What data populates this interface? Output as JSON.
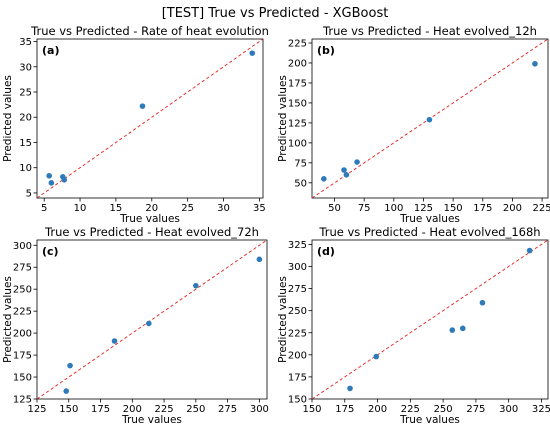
{
  "figure_title": "[TEST] True vs Predicted - XGBoost",
  "colors": {
    "points": "#2f7ab9",
    "identity_line": "#e8211d"
  },
  "chart_data": [
    {
      "type": "scatter",
      "panel_label": "(a)",
      "title": "True vs Predicted - Rate of heat evolution",
      "xlabel": "True values",
      "ylabel": "Predicted values",
      "xlim": [
        4.0,
        35.5
      ],
      "ylim": [
        4.0,
        35.5
      ],
      "xticks": [
        5,
        10,
        15,
        20,
        25,
        30,
        35
      ],
      "yticks": [
        5,
        10,
        15,
        20,
        25,
        30,
        35
      ],
      "identity_line": true,
      "grid": false,
      "points": [
        {
          "x": 5.7,
          "y": 8.4
        },
        {
          "x": 6.0,
          "y": 7.0
        },
        {
          "x": 7.6,
          "y": 8.2
        },
        {
          "x": 7.8,
          "y": 7.6
        },
        {
          "x": 18.7,
          "y": 22.2
        },
        {
          "x": 34.0,
          "y": 32.7
        }
      ]
    },
    {
      "type": "scatter",
      "panel_label": "(b)",
      "title": "True vs Predicted - Heat evolved_12h",
      "xlabel": "True values",
      "ylabel": "Predicted values",
      "xlim": [
        31,
        230
      ],
      "ylim": [
        31,
        230
      ],
      "xticks": [
        50,
        75,
        100,
        125,
        150,
        175,
        200,
        225
      ],
      "yticks": [
        50,
        75,
        100,
        125,
        150,
        175,
        200,
        225
      ],
      "identity_line": true,
      "grid": false,
      "points": [
        {
          "x": 41,
          "y": 55
        },
        {
          "x": 58,
          "y": 66
        },
        {
          "x": 60,
          "y": 60
        },
        {
          "x": 69,
          "y": 76
        },
        {
          "x": 130,
          "y": 129
        },
        {
          "x": 219,
          "y": 199
        }
      ]
    },
    {
      "type": "scatter",
      "panel_label": "(c)",
      "title": "True vs Predicted - Heat evolved_72h",
      "xlabel": "True values",
      "ylabel": "Predicted values",
      "xlim": [
        125,
        306
      ],
      "ylim": [
        125,
        306
      ],
      "xticks": [
        125,
        150,
        175,
        200,
        225,
        250,
        275,
        300
      ],
      "yticks": [
        125,
        150,
        175,
        200,
        225,
        250,
        275,
        300
      ],
      "identity_line": true,
      "grid": false,
      "points": [
        {
          "x": 148,
          "y": 134
        },
        {
          "x": 151,
          "y": 163
        },
        {
          "x": 186,
          "y": 191
        },
        {
          "x": 213,
          "y": 211
        },
        {
          "x": 250,
          "y": 254
        },
        {
          "x": 300,
          "y": 284
        }
      ]
    },
    {
      "type": "scatter",
      "panel_label": "(d)",
      "title": "True vs Predicted - Heat evolved_168h",
      "xlabel": "True values",
      "ylabel": "Predicted values",
      "xlim": [
        150,
        330
      ],
      "ylim": [
        150,
        330
      ],
      "xticks": [
        150,
        175,
        200,
        225,
        250,
        275,
        300,
        325
      ],
      "yticks": [
        150,
        175,
        200,
        225,
        250,
        275,
        300,
        325
      ],
      "identity_line": true,
      "grid": false,
      "points": [
        {
          "x": 179,
          "y": 162
        },
        {
          "x": 199,
          "y": 198
        },
        {
          "x": 257,
          "y": 228
        },
        {
          "x": 265,
          "y": 230
        },
        {
          "x": 280,
          "y": 259
        },
        {
          "x": 316,
          "y": 318
        }
      ]
    }
  ]
}
